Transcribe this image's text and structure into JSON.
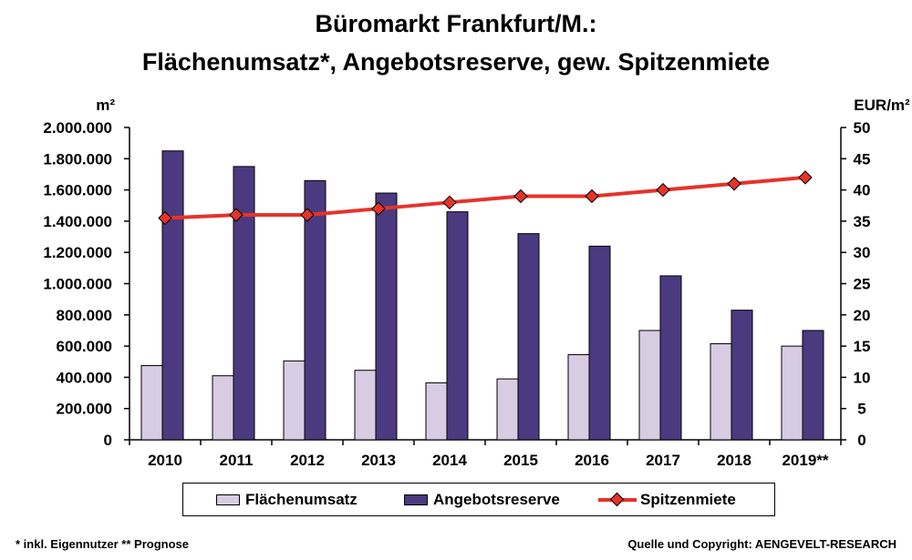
{
  "colors": {
    "flaechenumsatz": "#d8cce3",
    "angebotsreserve": "#4b3a7f",
    "spitzenmiete": "#e5332a",
    "marker": "#e5332a"
  },
  "chart_data": {
    "type": "bar",
    "title": "Büromarkt Frankfurt/M.:",
    "subtitle": "Flächenumsatz*, Angebotsreserve, gew. Spitzenmiete",
    "ylabel": "m²",
    "y2label": "EUR/m²",
    "categories": [
      "2010",
      "2011",
      "2012",
      "2013",
      "2014",
      "2015",
      "2016",
      "2017",
      "2018",
      "2019**"
    ],
    "ylim": [
      0,
      2000000
    ],
    "y2lim": [
      0,
      50
    ],
    "yticks": [
      "0",
      "200.000",
      "400.000",
      "600.000",
      "800.000",
      "1.000.000",
      "1.200.000",
      "1.400.000",
      "1.600.000",
      "1.800.000",
      "2.000.000"
    ],
    "y2ticks": [
      "0",
      "5",
      "10",
      "15",
      "20",
      "25",
      "30",
      "35",
      "40",
      "45",
      "50"
    ],
    "grid": false,
    "legend_position": "bottom",
    "series": [
      {
        "name": "Flächenumsatz",
        "type": "bar",
        "axis": "left",
        "values": [
          475000,
          410000,
          505000,
          445000,
          365000,
          390000,
          545000,
          700000,
          615000,
          600000
        ]
      },
      {
        "name": "Angebotsreserve",
        "type": "bar",
        "axis": "left",
        "values": [
          1850000,
          1750000,
          1660000,
          1580000,
          1460000,
          1320000,
          1240000,
          1050000,
          830000,
          700000
        ]
      },
      {
        "name": "Spitzenmiete",
        "type": "line",
        "axis": "right",
        "values": [
          35.5,
          36,
          36,
          37,
          38,
          39,
          39,
          40,
          41,
          42
        ]
      }
    ]
  },
  "footnote": "* inkl. Eigennutzer   ** Prognose",
  "source": "Quelle und Copyright: AENGEVELT-RESEARCH"
}
